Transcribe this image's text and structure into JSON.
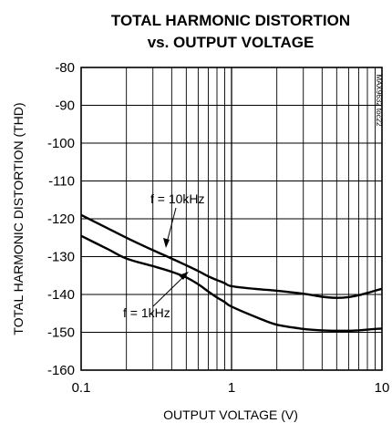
{
  "chart_data": {
    "type": "line",
    "title_line1": "TOTAL HARMONIC DISTORTION",
    "title_line2": "vs. OUTPUT VOLTAGE",
    "xlabel": "OUTPUT VOLTAGE (V)",
    "ylabel": "TOTAL HARMONIC DISTORTION (THD)",
    "x_scale": "log",
    "xlim": [
      0.1,
      10
    ],
    "ylim": [
      -160,
      -80
    ],
    "x_ticks": [
      0.1,
      1,
      10
    ],
    "x_tick_labels": [
      "0.1",
      "1",
      "10"
    ],
    "y_ticks": [
      -80,
      -90,
      -100,
      -110,
      -120,
      -130,
      -140,
      -150,
      -160
    ],
    "y_tick_labels": [
      "-80",
      "-90",
      "-100",
      "-110",
      "-120",
      "-130",
      "-140",
      "-150",
      "-160"
    ],
    "grid": true,
    "code_label": "MAX9632 toc22",
    "series": [
      {
        "name": "f = 10kHz",
        "x": [
          0.1,
          0.15,
          0.2,
          0.3,
          0.4,
          0.5,
          0.6,
          0.7,
          0.8,
          0.9,
          1,
          1.5,
          2,
          3,
          4,
          5,
          6,
          7,
          8,
          9,
          10
        ],
        "y": [
          -119,
          -122.5,
          -125,
          -128.3,
          -130.5,
          -132.3,
          -133.8,
          -135.2,
          -136.2,
          -137,
          -137.8,
          -138.6,
          -139,
          -139.8,
          -140.6,
          -140.9,
          -140.7,
          -140.2,
          -139.6,
          -139,
          -138.5
        ]
      },
      {
        "name": "f = 1kHz",
        "x": [
          0.1,
          0.15,
          0.2,
          0.3,
          0.4,
          0.5,
          0.6,
          0.7,
          0.8,
          0.9,
          1,
          1.5,
          2,
          3,
          4,
          5,
          6,
          7,
          8,
          9,
          10
        ],
        "y": [
          -124.5,
          -128,
          -130.5,
          -132.5,
          -134,
          -135.5,
          -137.3,
          -139.2,
          -140.8,
          -142,
          -143.2,
          -146.2,
          -148,
          -149.1,
          -149.5,
          -149.6,
          -149.6,
          -149.5,
          -149.3,
          -149.1,
          -149
        ]
      }
    ],
    "annotations": [
      "f = 10kHz",
      "f = 1kHz"
    ]
  }
}
